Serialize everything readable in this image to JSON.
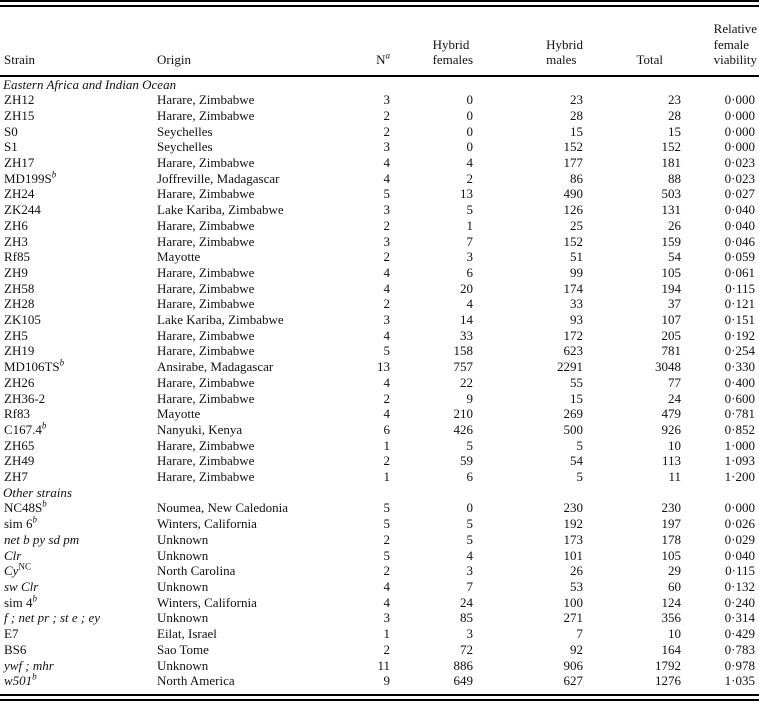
{
  "page": {
    "background": "#ffffff",
    "text_color": "#111111",
    "rule_color": "#000000"
  },
  "table": {
    "header": {
      "strain": "Strain",
      "origin": "Origin",
      "n": "N",
      "n_sup": "a",
      "hybrid_females_line1": "Hybrid",
      "hybrid_females_line2": "females",
      "hybrid_males_line1": "Hybrid",
      "hybrid_males_line2": "males",
      "total": "Total",
      "viability_line1": "Relative",
      "viability_line2": "female",
      "viability_line3": "viability"
    },
    "sections": [
      {
        "label": "Eastern Africa and Indian Ocean",
        "rows": [
          {
            "strain": "ZH12",
            "sup": "",
            "italic": false,
            "origin": "Harare, Zimbabwe",
            "n": "3",
            "females": "0",
            "males": "23",
            "total": "23",
            "viability": "0·000"
          },
          {
            "strain": "ZH15",
            "sup": "",
            "italic": false,
            "origin": "Harare, Zimbabwe",
            "n": "2",
            "females": "0",
            "males": "28",
            "total": "28",
            "viability": "0·000"
          },
          {
            "strain": "S0",
            "sup": "",
            "italic": false,
            "origin": "Seychelles",
            "n": "2",
            "females": "0",
            "males": "15",
            "total": "15",
            "viability": "0·000"
          },
          {
            "strain": "S1",
            "sup": "",
            "italic": false,
            "origin": "Seychelles",
            "n": "3",
            "females": "0",
            "males": "152",
            "total": "152",
            "viability": "0·000"
          },
          {
            "strain": "ZH17",
            "sup": "",
            "italic": false,
            "origin": "Harare, Zimbabwe",
            "n": "4",
            "females": "4",
            "males": "177",
            "total": "181",
            "viability": "0·023"
          },
          {
            "strain": "MD199S",
            "sup": "b",
            "italic": false,
            "origin": "Joffreville, Madagascar",
            "n": "4",
            "females": "2",
            "males": "86",
            "total": "88",
            "viability": "0·023"
          },
          {
            "strain": "ZH24",
            "sup": "",
            "italic": false,
            "origin": "Harare, Zimbabwe",
            "n": "5",
            "females": "13",
            "males": "490",
            "total": "503",
            "viability": "0·027"
          },
          {
            "strain": "ZK244",
            "sup": "",
            "italic": false,
            "origin": "Lake Kariba, Zimbabwe",
            "n": "3",
            "females": "5",
            "males": "126",
            "total": "131",
            "viability": "0·040"
          },
          {
            "strain": "ZH6",
            "sup": "",
            "italic": false,
            "origin": "Harare, Zimbabwe",
            "n": "2",
            "females": "1",
            "males": "25",
            "total": "26",
            "viability": "0·040"
          },
          {
            "strain": "ZH3",
            "sup": "",
            "italic": false,
            "origin": "Harare, Zimbabwe",
            "n": "3",
            "females": "7",
            "males": "152",
            "total": "159",
            "viability": "0·046"
          },
          {
            "strain": "Rf85",
            "sup": "",
            "italic": false,
            "origin": "Mayotte",
            "n": "2",
            "females": "3",
            "males": "51",
            "total": "54",
            "viability": "0·059"
          },
          {
            "strain": "ZH9",
            "sup": "",
            "italic": false,
            "origin": "Harare, Zimbabwe",
            "n": "4",
            "females": "6",
            "males": "99",
            "total": "105",
            "viability": "0·061"
          },
          {
            "strain": "ZH58",
            "sup": "",
            "italic": false,
            "origin": "Harare, Zimbabwe",
            "n": "4",
            "females": "20",
            "males": "174",
            "total": "194",
            "viability": "0·115"
          },
          {
            "strain": "ZH28",
            "sup": "",
            "italic": false,
            "origin": "Harare, Zimbabwe",
            "n": "2",
            "females": "4",
            "males": "33",
            "total": "37",
            "viability": "0·121"
          },
          {
            "strain": "ZK105",
            "sup": "",
            "italic": false,
            "origin": "Lake Kariba, Zimbabwe",
            "n": "3",
            "females": "14",
            "males": "93",
            "total": "107",
            "viability": "0·151"
          },
          {
            "strain": "ZH5",
            "sup": "",
            "italic": false,
            "origin": "Harare, Zimbabwe",
            "n": "4",
            "females": "33",
            "males": "172",
            "total": "205",
            "viability": "0·192"
          },
          {
            "strain": "ZH19",
            "sup": "",
            "italic": false,
            "origin": "Harare, Zimbabwe",
            "n": "5",
            "females": "158",
            "males": "623",
            "total": "781",
            "viability": "0·254"
          },
          {
            "strain": "MD106TS",
            "sup": "b",
            "italic": false,
            "origin": "Ansirabe, Madagascar",
            "n": "13",
            "females": "757",
            "males": "2291",
            "total": "3048",
            "viability": "0·330"
          },
          {
            "strain": "ZH26",
            "sup": "",
            "italic": false,
            "origin": "Harare, Zimbabwe",
            "n": "4",
            "females": "22",
            "males": "55",
            "total": "77",
            "viability": "0·400"
          },
          {
            "strain": "ZH36-2",
            "sup": "",
            "italic": false,
            "origin": "Harare, Zimbabwe",
            "n": "2",
            "females": "9",
            "males": "15",
            "total": "24",
            "viability": "0·600"
          },
          {
            "strain": "Rf83",
            "sup": "",
            "italic": false,
            "origin": "Mayotte",
            "n": "4",
            "females": "210",
            "males": "269",
            "total": "479",
            "viability": "0·781"
          },
          {
            "strain": "C167.4",
            "sup": "b",
            "italic": false,
            "origin": "Nanyuki, Kenya",
            "n": "6",
            "females": "426",
            "males": "500",
            "total": "926",
            "viability": "0·852"
          },
          {
            "strain": "ZH65",
            "sup": "",
            "italic": false,
            "origin": "Harare, Zimbabwe",
            "n": "1",
            "females": "5",
            "males": "5",
            "total": "10",
            "viability": "1·000"
          },
          {
            "strain": "ZH49",
            "sup": "",
            "italic": false,
            "origin": "Harare, Zimbabwe",
            "n": "2",
            "females": "59",
            "males": "54",
            "total": "113",
            "viability": "1·093"
          },
          {
            "strain": "ZH7",
            "sup": "",
            "italic": false,
            "origin": "Harare, Zimbabwe",
            "n": "1",
            "females": "6",
            "males": "5",
            "total": "11",
            "viability": "1·200"
          }
        ]
      },
      {
        "label": "Other strains",
        "rows": [
          {
            "strain": "NC48S",
            "sup": "b",
            "italic": false,
            "origin": "Noumea, New Caledonia",
            "n": "5",
            "females": "0",
            "males": "230",
            "total": "230",
            "viability": "0·000"
          },
          {
            "strain": "sim 6",
            "sup": "b",
            "italic": false,
            "origin": "Winters, California",
            "n": "5",
            "females": "5",
            "males": "192",
            "total": "197",
            "viability": "0·026"
          },
          {
            "strain": "net b py sd pm",
            "sup": "",
            "italic": true,
            "origin": "Unknown",
            "n": "2",
            "females": "5",
            "males": "173",
            "total": "178",
            "viability": "0·029"
          },
          {
            "strain": "Clr",
            "sup": "",
            "italic": true,
            "origin": "Unknown",
            "n": "5",
            "females": "4",
            "males": "101",
            "total": "105",
            "viability": "0·040"
          },
          {
            "strain": "Cy",
            "sup": "NC",
            "italic": true,
            "sup_italic": false,
            "origin": "North Carolina",
            "n": "2",
            "females": "3",
            "males": "26",
            "total": "29",
            "viability": "0·115"
          },
          {
            "strain": "sw Clr",
            "sup": "",
            "italic": true,
            "origin": "Unknown",
            "n": "4",
            "females": "7",
            "males": "53",
            "total": "60",
            "viability": "0·132"
          },
          {
            "strain": "sim 4",
            "sup": "b",
            "italic": false,
            "origin": "Winters, California",
            "n": "4",
            "females": "24",
            "males": "100",
            "total": "124",
            "viability": "0·240"
          },
          {
            "strain": "f ; net pr ; st e ; ey",
            "sup": "",
            "italic": true,
            "origin": "Unknown",
            "n": "3",
            "females": "85",
            "males": "271",
            "total": "356",
            "viability": "0·314"
          },
          {
            "strain": "E7",
            "sup": "",
            "italic": false,
            "origin": "Eilat, Israel",
            "n": "1",
            "females": "3",
            "males": "7",
            "total": "10",
            "viability": "0·429"
          },
          {
            "strain": "BS6",
            "sup": "",
            "italic": false,
            "origin": "Sao Tome",
            "n": "2",
            "females": "72",
            "males": "92",
            "total": "164",
            "viability": "0·783"
          },
          {
            "strain": "ywf ; mhr",
            "sup": "",
            "italic": true,
            "origin": "Unknown",
            "n": "11",
            "females": "886",
            "males": "906",
            "total": "1792",
            "viability": "0·978"
          },
          {
            "strain": "w501",
            "sup": "b",
            "italic": true,
            "origin": "North America",
            "n": "9",
            "females": "649",
            "males": "627",
            "total": "1276",
            "viability": "1·035"
          }
        ]
      }
    ]
  }
}
